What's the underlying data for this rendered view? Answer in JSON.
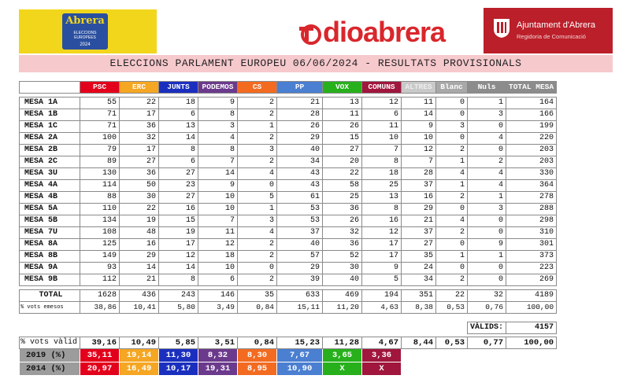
{
  "header": {
    "logo_left": {
      "title": "Abrera",
      "sub": "ELECCIONS EUROPEES",
      "year": "2024"
    },
    "brand": "dioabrera",
    "ajuntament": {
      "name": "Ajuntament d'Abrera",
      "dept": "Regidoria de Comunicació"
    }
  },
  "title": "ELECCIONS PARLAMENT EUROPEU 06/06/2024 - RESULTATS PROVISIONALS",
  "parties": [
    {
      "key": "psc",
      "label": "PSC",
      "color": "#e3001b"
    },
    {
      "key": "erc",
      "label": "ERC",
      "color": "#f5a623"
    },
    {
      "key": "junts",
      "label": "JUNTS",
      "color": "#1b2fbf"
    },
    {
      "key": "podemos",
      "label": "PODEMOS",
      "color": "#6b3a8c"
    },
    {
      "key": "cs",
      "label": "CS",
      "color": "#f36b21"
    },
    {
      "key": "pp",
      "label": "PP",
      "color": "#4a7fd1"
    },
    {
      "key": "vox",
      "label": "VOX",
      "color": "#27b01c"
    },
    {
      "key": "comuns",
      "label": "COMUNS",
      "color": "#a0163c"
    },
    {
      "key": "altres",
      "label": "ALTRES",
      "color": "#c9c9c9"
    },
    {
      "key": "blanc",
      "label": "Blanc",
      "color": "#a8a8a8"
    },
    {
      "key": "nuls",
      "label": "Nuls",
      "color": "#8c8c8c"
    },
    {
      "key": "total",
      "label": "TOTAL MESA",
      "color": "#8c8c8c"
    }
  ],
  "mesas": [
    {
      "name": "MESA 1A",
      "values": [
        "55",
        "22",
        "18",
        "9",
        "2",
        "21",
        "13",
        "12",
        "11",
        "0",
        "1",
        "164"
      ]
    },
    {
      "name": "MESA 1B",
      "values": [
        "71",
        "17",
        "6",
        "8",
        "2",
        "28",
        "11",
        "6",
        "14",
        "0",
        "3",
        "166"
      ]
    },
    {
      "name": "MESA 1C",
      "values": [
        "71",
        "36",
        "13",
        "3",
        "1",
        "26",
        "26",
        "11",
        "9",
        "3",
        "0",
        "199"
      ]
    },
    {
      "name": "MESA 2A",
      "values": [
        "100",
        "32",
        "14",
        "4",
        "2",
        "29",
        "15",
        "10",
        "10",
        "0",
        "4",
        "220"
      ]
    },
    {
      "name": "MESA 2B",
      "values": [
        "79",
        "17",
        "8",
        "8",
        "3",
        "40",
        "27",
        "7",
        "12",
        "2",
        "0",
        "203"
      ]
    },
    {
      "name": "MESA 2C",
      "values": [
        "89",
        "27",
        "6",
        "7",
        "2",
        "34",
        "20",
        "8",
        "7",
        "1",
        "2",
        "203"
      ]
    },
    {
      "name": "MESA 3U",
      "values": [
        "130",
        "36",
        "27",
        "14",
        "4",
        "43",
        "22",
        "18",
        "28",
        "4",
        "4",
        "330"
      ]
    },
    {
      "name": "MESA 4A",
      "values": [
        "114",
        "50",
        "23",
        "9",
        "0",
        "43",
        "58",
        "25",
        "37",
        "1",
        "4",
        "364"
      ]
    },
    {
      "name": "MESA 4B",
      "values": [
        "88",
        "30",
        "27",
        "10",
        "5",
        "61",
        "25",
        "13",
        "16",
        "2",
        "1",
        "278"
      ]
    },
    {
      "name": "MESA 5A",
      "values": [
        "110",
        "22",
        "16",
        "10",
        "1",
        "53",
        "36",
        "8",
        "29",
        "0",
        "3",
        "288"
      ]
    },
    {
      "name": "MESA 5B",
      "values": [
        "134",
        "19",
        "15",
        "7",
        "3",
        "53",
        "26",
        "16",
        "21",
        "4",
        "0",
        "298"
      ]
    },
    {
      "name": "MESA 7U",
      "values": [
        "108",
        "48",
        "19",
        "11",
        "4",
        "37",
        "32",
        "12",
        "37",
        "2",
        "0",
        "310"
      ]
    },
    {
      "name": "MESA 8A",
      "values": [
        "125",
        "16",
        "17",
        "12",
        "2",
        "40",
        "36",
        "17",
        "27",
        "0",
        "9",
        "301"
      ]
    },
    {
      "name": "MESA 8B",
      "values": [
        "149",
        "29",
        "12",
        "18",
        "2",
        "57",
        "52",
        "17",
        "35",
        "1",
        "1",
        "373"
      ]
    },
    {
      "name": "MESA 9A",
      "values": [
        "93",
        "14",
        "14",
        "10",
        "0",
        "29",
        "30",
        "9",
        "24",
        "0",
        "0",
        "223"
      ]
    },
    {
      "name": "MESA 9B",
      "values": [
        "112",
        "21",
        "8",
        "6",
        "2",
        "39",
        "40",
        "5",
        "34",
        "2",
        "0",
        "269"
      ]
    }
  ],
  "total": {
    "label": "TOTAL",
    "values": [
      "1628",
      "436",
      "243",
      "146",
      "35",
      "633",
      "469",
      "194",
      "351",
      "22",
      "32",
      "4189"
    ]
  },
  "emesos": {
    "label": "% vots emesos",
    "values": [
      "38,86",
      "10,41",
      "5,80",
      "3,49",
      "0,84",
      "15,11",
      "11,20",
      "4,63",
      "8,38",
      "0,53",
      "0,76",
      "100,00"
    ]
  },
  "valids": {
    "label": "VÀLIDS:",
    "value": "4157"
  },
  "valid_pct": {
    "label": "% vots vàlid",
    "values": [
      "39,16",
      "10,49",
      "5,85",
      "3,51",
      "0,84",
      "15,23",
      "11,28",
      "4,67",
      "8,44",
      "0,53",
      "0,77",
      "100,00"
    ]
  },
  "history": [
    {
      "label": "2019 (%)",
      "values": [
        "35,11",
        "19,14",
        "11,30",
        "8,32",
        "8,30",
        "7,67",
        "3,65",
        "3,36"
      ]
    },
    {
      "label": "2014 (%)",
      "values": [
        "20,97",
        "16,49",
        "10,17",
        "19,31",
        "8,95",
        "10,90",
        "X",
        "X"
      ]
    }
  ]
}
